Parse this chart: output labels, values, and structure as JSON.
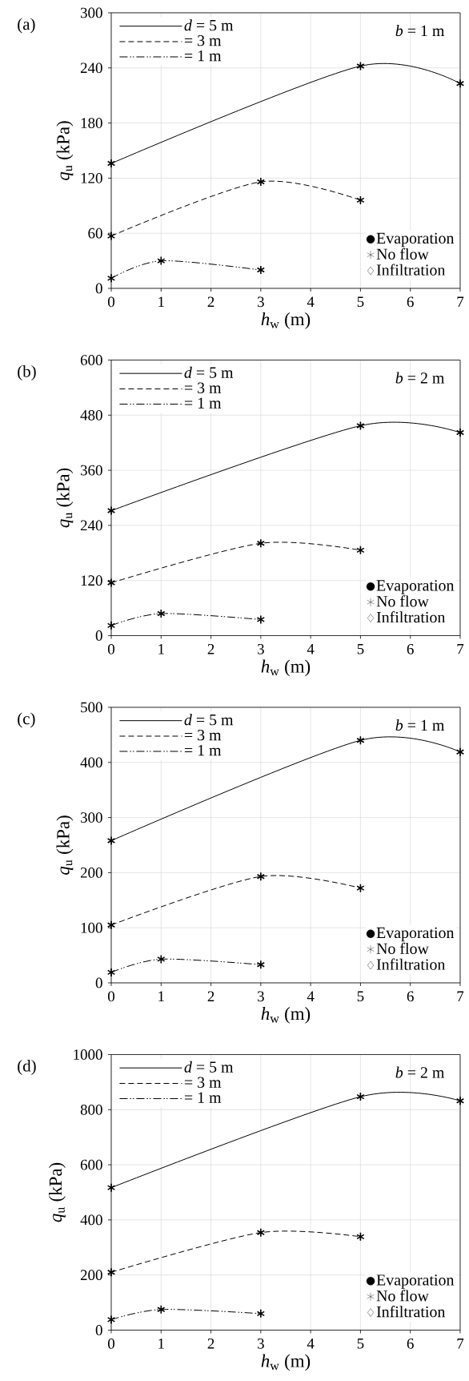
{
  "chart_data": [
    {
      "type": "line",
      "title": "(a)",
      "xlabel": "*h*$_{w}$ (m)",
      "ylabel": "*q*$_{u}$  (kPa)",
      "annotations": [
        "*b* = 1 m"
      ],
      "xlim": [
        0,
        7
      ],
      "xticks": [
        0,
        1,
        2,
        3,
        4,
        5,
        6,
        7
      ],
      "ylim": [
        0,
        300
      ],
      "yticks": [
        0,
        60,
        120,
        180,
        240,
        300
      ],
      "grid": true,
      "legend": "top left",
      "series": [
        {
          "name": "*d* = 5 m",
          "color": "#000000",
          "x": [
            0,
            5,
            7
          ],
          "values": [
            136,
            242,
            223
          ],
          "marker": "cross",
          "line_style": "solid"
        },
        {
          "name": "= 3 m",
          "color": "#000000",
          "x": [
            0,
            3,
            5
          ],
          "values": [
            57,
            116,
            96
          ],
          "marker": "cross",
          "line_style": "dashed"
        },
        {
          "name": "= 1 m",
          "color": "#000000",
          "x": [
            0,
            1,
            3
          ],
          "values": [
            11,
            30,
            20
          ],
          "marker": "cross",
          "line_style": "dashdotdotted"
        },
        {
          "type": "scatter",
          "name": "Evaporation",
          "color": "#000000",
          "marker": "circle"
        },
        {
          "type": "scatter",
          "name": "No flow",
          "color": "#000000",
          "marker": "cross"
        },
        {
          "type": "scatter",
          "name": "Infiltration",
          "color": "#000000",
          "marker": "diamond"
        }
      ]
    },
    {
      "type": "line",
      "title": "(b)",
      "xlabel": "*h*$_{w}$ (m)",
      "ylabel": "*q*$_{u}$  (kPa)",
      "annotations": [
        "*b* = 2 m"
      ],
      "xlim": [
        0,
        7
      ],
      "xticks": [
        0,
        1,
        2,
        3,
        4,
        5,
        6,
        7
      ],
      "ylim": [
        0,
        600
      ],
      "yticks": [
        0,
        120,
        240,
        360,
        480,
        600
      ],
      "grid": true,
      "legend": "top left",
      "series": [
        {
          "name": "*d* = 5 m",
          "color": "#000000",
          "x": [
            0,
            5,
            7
          ],
          "values": [
            272,
            457,
            442
          ],
          "marker": "cross",
          "line_style": "solid"
        },
        {
          "name": "= 3 m",
          "color": "#000000",
          "x": [
            0,
            3,
            5
          ],
          "values": [
            115,
            201,
            186
          ],
          "marker": "cross",
          "line_style": "dashed"
        },
        {
          "name": "= 1 m",
          "color": "#000000",
          "x": [
            0,
            1,
            3
          ],
          "values": [
            22,
            48,
            35
          ],
          "marker": "cross",
          "line_style": "dashdotdotted"
        },
        {
          "type": "scatter",
          "name": "Evaporation",
          "color": "#000000",
          "marker": "circle"
        },
        {
          "type": "scatter",
          "name": "No flow",
          "color": "#000000",
          "marker": "cross"
        },
        {
          "type": "scatter",
          "name": "Infiltration",
          "color": "#000000",
          "marker": "diamond"
        }
      ]
    },
    {
      "type": "line",
      "title": "(c)",
      "xlabel": "*h*$_{w}$ (m)",
      "ylabel": "*q*$_{u}$  (kPa)",
      "annotations": [
        "*b* = 1 m"
      ],
      "xlim": [
        0,
        7
      ],
      "xticks": [
        0,
        1,
        2,
        3,
        4,
        5,
        6,
        7
      ],
      "ylim": [
        0,
        500
      ],
      "yticks": [
        0,
        100,
        200,
        300,
        400,
        500
      ],
      "grid": true,
      "legend": "top left",
      "series": [
        {
          "name": "*d* = 5 m",
          "color": "#000000",
          "x": [
            0,
            5,
            7
          ],
          "values": [
            258,
            440,
            419
          ],
          "marker": "cross",
          "line_style": "solid"
        },
        {
          "name": "= 3 m",
          "color": "#000000",
          "x": [
            0,
            3,
            5
          ],
          "values": [
            105,
            193,
            172
          ],
          "marker": "cross",
          "line_style": "dashed"
        },
        {
          "name": "= 1 m",
          "color": "#000000",
          "x": [
            0,
            1,
            3
          ],
          "values": [
            19,
            43,
            33
          ],
          "marker": "cross",
          "line_style": "dashdotdotted"
        },
        {
          "type": "scatter",
          "name": "Evaporation",
          "color": "#000000",
          "marker": "circle"
        },
        {
          "type": "scatter",
          "name": "No flow",
          "color": "#000000",
          "marker": "cross"
        },
        {
          "type": "scatter",
          "name": "Infiltration",
          "color": "#000000",
          "marker": "diamond"
        }
      ]
    },
    {
      "type": "line",
      "title": "(d)",
      "xlabel": "*h*$_{w}$ (m)",
      "ylabel": "*q*$_{u}$  (kPa)",
      "annotations": [
        "*b* = 2 m"
      ],
      "xlim": [
        0,
        7
      ],
      "xticks": [
        0,
        1,
        2,
        3,
        4,
        5,
        6,
        7
      ],
      "ylim": [
        0,
        1000
      ],
      "yticks": [
        0,
        200,
        400,
        600,
        800,
        1000
      ],
      "grid": true,
      "legend": "top left",
      "series": [
        {
          "name": "*d* = 5 m",
          "color": "#000000",
          "x": [
            0,
            5,
            7
          ],
          "values": [
            517,
            847,
            832
          ],
          "marker": "cross",
          "line_style": "solid"
        },
        {
          "name": "= 3 m",
          "color": "#000000",
          "x": [
            0,
            3,
            5
          ],
          "values": [
            210,
            354,
            339
          ],
          "marker": "cross",
          "line_style": "dashed"
        },
        {
          "name": "= 1 m",
          "color": "#000000",
          "x": [
            0,
            1,
            3
          ],
          "values": [
            38,
            75,
            60
          ],
          "marker": "cross",
          "line_style": "dashdotdotted"
        },
        {
          "type": "scatter",
          "name": "Evaporation",
          "color": "#000000",
          "marker": "circle"
        },
        {
          "type": "scatter",
          "name": "No flow",
          "color": "#000000",
          "marker": "cross"
        },
        {
          "type": "scatter",
          "name": "Infiltration",
          "color": "#000000",
          "marker": "diamond"
        }
      ]
    }
  ]
}
